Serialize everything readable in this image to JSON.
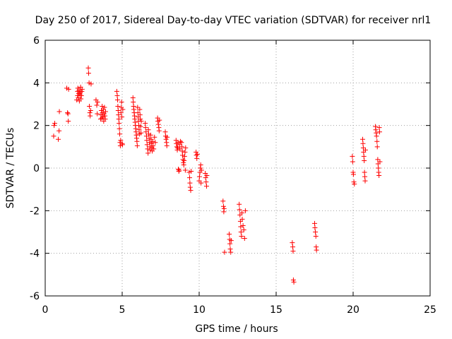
{
  "chart_data": {
    "type": "scatter",
    "title": "Day 250 of 2017, Sidereal Day-to-day VTEC variation (SDTVAR) for receiver nrl1",
    "xlabel": "GPS time / hours",
    "ylabel": "SDTVAR / TECUs",
    "xlim": [
      0,
      25
    ],
    "ylim": [
      -6,
      6
    ],
    "xticks": [
      0,
      5,
      10,
      15,
      20,
      25
    ],
    "yticks": [
      -6,
      -4,
      -2,
      0,
      2,
      4,
      6
    ],
    "xtick_labels": [
      "0",
      "5",
      "10",
      "15",
      "20",
      "25"
    ],
    "ytick_labels": [
      "-6",
      "-4",
      "-2",
      "0",
      "2",
      "4",
      "6"
    ],
    "grid": true,
    "marker": "plus",
    "marker_color": "#ff0000",
    "series": [
      {
        "name": "nrl1",
        "points": [
          [
            0.55,
            1.5
          ],
          [
            0.58,
            2.0
          ],
          [
            0.62,
            2.1
          ],
          [
            0.85,
            1.35
          ],
          [
            0.9,
            1.75
          ],
          [
            0.92,
            2.65
          ],
          [
            1.4,
            3.75
          ],
          [
            1.45,
            2.6
          ],
          [
            1.48,
            2.55
          ],
          [
            1.5,
            2.2
          ],
          [
            1.52,
            3.7
          ],
          [
            2.05,
            3.2
          ],
          [
            2.1,
            3.4
          ],
          [
            2.1,
            3.6
          ],
          [
            2.12,
            3.75
          ],
          [
            2.15,
            3.3
          ],
          [
            2.18,
            3.5
          ],
          [
            2.2,
            3.65
          ],
          [
            2.22,
            3.15
          ],
          [
            2.25,
            3.45
          ],
          [
            2.28,
            3.55
          ],
          [
            2.3,
            3.8
          ],
          [
            2.32,
            3.25
          ],
          [
            2.35,
            3.4
          ],
          [
            2.38,
            3.6
          ],
          [
            2.4,
            3.7
          ],
          [
            2.8,
            4.7
          ],
          [
            2.82,
            4.45
          ],
          [
            2.85,
            4.0
          ],
          [
            2.87,
            2.9
          ],
          [
            2.9,
            2.6
          ],
          [
            2.92,
            2.45
          ],
          [
            2.95,
            2.7
          ],
          [
            2.98,
            3.95
          ],
          [
            3.3,
            3.2
          ],
          [
            3.35,
            2.95
          ],
          [
            3.38,
            2.55
          ],
          [
            3.4,
            3.1
          ],
          [
            3.6,
            2.3
          ],
          [
            3.62,
            2.5
          ],
          [
            3.65,
            2.7
          ],
          [
            3.68,
            2.35
          ],
          [
            3.7,
            2.9
          ],
          [
            3.72,
            2.6
          ],
          [
            3.75,
            2.4
          ],
          [
            3.78,
            2.75
          ],
          [
            3.8,
            2.2
          ],
          [
            3.82,
            2.55
          ],
          [
            3.85,
            2.85
          ],
          [
            3.88,
            2.45
          ],
          [
            3.9,
            2.3
          ],
          [
            3.92,
            2.65
          ],
          [
            4.65,
            3.6
          ],
          [
            4.68,
            3.4
          ],
          [
            4.7,
            3.2
          ],
          [
            4.72,
            2.9
          ],
          [
            4.74,
            2.7
          ],
          [
            4.76,
            2.5
          ],
          [
            4.78,
            2.3
          ],
          [
            4.8,
            2.1
          ],
          [
            4.82,
            1.85
          ],
          [
            4.84,
            1.6
          ],
          [
            4.86,
            1.2
          ],
          [
            4.88,
            1.05
          ],
          [
            4.9,
            1.3
          ],
          [
            4.92,
            2.6
          ],
          [
            4.94,
            2.85
          ],
          [
            4.96,
            3.1
          ],
          [
            4.98,
            2.4
          ],
          [
            5.0,
            1.15
          ],
          [
            5.02,
            1.1
          ],
          [
            5.04,
            2.75
          ],
          [
            5.7,
            3.3
          ],
          [
            5.72,
            3.1
          ],
          [
            5.74,
            2.9
          ],
          [
            5.76,
            2.75
          ],
          [
            5.78,
            2.6
          ],
          [
            5.8,
            2.45
          ],
          [
            5.82,
            2.3
          ],
          [
            5.84,
            2.15
          ],
          [
            5.86,
            2.0
          ],
          [
            5.88,
            1.85
          ],
          [
            5.9,
            1.7
          ],
          [
            5.92,
            1.55
          ],
          [
            5.94,
            1.4
          ],
          [
            5.96,
            1.25
          ],
          [
            5.98,
            1.05
          ],
          [
            6.0,
            2.85
          ],
          [
            6.02,
            2.6
          ],
          [
            6.04,
            2.4
          ],
          [
            6.06,
            2.2
          ],
          [
            6.08,
            2.0
          ],
          [
            6.1,
            1.8
          ],
          [
            6.12,
            1.6
          ],
          [
            6.14,
            2.75
          ],
          [
            6.16,
            2.5
          ],
          [
            6.18,
            2.3
          ],
          [
            6.2,
            1.95
          ],
          [
            6.22,
            1.65
          ],
          [
            6.24,
            2.2
          ],
          [
            6.5,
            2.1
          ],
          [
            6.52,
            1.9
          ],
          [
            6.55,
            1.7
          ],
          [
            6.58,
            1.5
          ],
          [
            6.6,
            1.3
          ],
          [
            6.62,
            1.1
          ],
          [
            6.65,
            0.9
          ],
          [
            6.68,
            0.7
          ],
          [
            6.7,
            1.8
          ],
          [
            6.72,
            1.6
          ],
          [
            6.75,
            1.4
          ],
          [
            6.78,
            1.2
          ],
          [
            6.8,
            1.0
          ],
          [
            6.82,
            0.85
          ],
          [
            6.85,
            1.55
          ],
          [
            6.88,
            1.35
          ],
          [
            6.9,
            1.15
          ],
          [
            6.92,
            0.95
          ],
          [
            6.95,
            0.8
          ],
          [
            6.98,
            1.25
          ],
          [
            7.0,
            1.05
          ],
          [
            7.05,
            0.9
          ],
          [
            7.1,
            1.45
          ],
          [
            7.15,
            1.2
          ],
          [
            7.3,
            2.35
          ],
          [
            7.32,
            2.2
          ],
          [
            7.35,
            2.05
          ],
          [
            7.38,
            1.9
          ],
          [
            7.4,
            1.75
          ],
          [
            7.42,
            2.25
          ],
          [
            7.8,
            1.7
          ],
          [
            7.82,
            1.5
          ],
          [
            7.85,
            1.35
          ],
          [
            7.88,
            1.2
          ],
          [
            7.9,
            1.05
          ],
          [
            7.92,
            1.45
          ],
          [
            8.5,
            1.3
          ],
          [
            8.52,
            1.15
          ],
          [
            8.55,
            1.0
          ],
          [
            8.58,
            0.85
          ],
          [
            8.6,
            0.95
          ],
          [
            8.62,
            1.2
          ],
          [
            8.65,
            -0.05
          ],
          [
            8.68,
            -0.15
          ],
          [
            8.7,
            -0.1
          ],
          [
            8.72,
            1.1
          ],
          [
            8.75,
            0.9
          ],
          [
            8.78,
            1.25
          ],
          [
            8.85,
            1.2
          ],
          [
            8.88,
            1.0
          ],
          [
            8.9,
            0.8
          ],
          [
            8.92,
            0.6
          ],
          [
            8.95,
            0.4
          ],
          [
            8.98,
            0.25
          ],
          [
            9.0,
            0.15
          ],
          [
            9.02,
            0.35
          ],
          [
            9.05,
            0.55
          ],
          [
            9.08,
            0.75
          ],
          [
            9.1,
            -0.1
          ],
          [
            9.12,
            0.95
          ],
          [
            9.35,
            -0.2
          ],
          [
            9.38,
            -0.45
          ],
          [
            9.4,
            -0.7
          ],
          [
            9.42,
            -0.9
          ],
          [
            9.45,
            -1.05
          ],
          [
            9.48,
            -0.15
          ],
          [
            9.8,
            0.75
          ],
          [
            9.82,
            0.6
          ],
          [
            9.85,
            0.45
          ],
          [
            9.88,
            0.65
          ],
          [
            10.0,
            -0.6
          ],
          [
            10.02,
            -0.4
          ],
          [
            10.05,
            -0.2
          ],
          [
            10.08,
            0.0
          ],
          [
            10.1,
            0.15
          ],
          [
            10.12,
            -0.7
          ],
          [
            10.15,
            -0.1
          ],
          [
            10.4,
            -0.25
          ],
          [
            10.42,
            -0.45
          ],
          [
            10.45,
            -0.65
          ],
          [
            10.48,
            -0.85
          ],
          [
            10.5,
            -0.35
          ],
          [
            11.55,
            -1.55
          ],
          [
            11.58,
            -1.8
          ],
          [
            11.6,
            -2.05
          ],
          [
            11.62,
            -1.9
          ],
          [
            11.65,
            -3.95
          ],
          [
            11.95,
            -3.1
          ],
          [
            11.98,
            -3.35
          ],
          [
            12.0,
            -3.55
          ],
          [
            12.02,
            -3.8
          ],
          [
            12.05,
            -3.95
          ],
          [
            12.08,
            -3.4
          ],
          [
            12.6,
            -1.7
          ],
          [
            12.62,
            -1.95
          ],
          [
            12.65,
            -2.2
          ],
          [
            12.68,
            -2.5
          ],
          [
            12.7,
            -2.75
          ],
          [
            12.72,
            -3.0
          ],
          [
            12.75,
            -3.2
          ],
          [
            12.78,
            -2.1
          ],
          [
            12.8,
            -2.4
          ],
          [
            12.85,
            -2.7
          ],
          [
            12.9,
            -2.9
          ],
          [
            12.95,
            -3.3
          ],
          [
            13.0,
            -2.0
          ],
          [
            16.05,
            -3.5
          ],
          [
            16.08,
            -3.7
          ],
          [
            16.1,
            -3.9
          ],
          [
            16.12,
            -5.25
          ],
          [
            16.15,
            -5.35
          ],
          [
            17.5,
            -2.6
          ],
          [
            17.52,
            -2.8
          ],
          [
            17.55,
            -3.0
          ],
          [
            17.58,
            -3.2
          ],
          [
            17.6,
            -3.7
          ],
          [
            17.62,
            -3.85
          ],
          [
            19.95,
            0.55
          ],
          [
            19.97,
            0.3
          ],
          [
            20.0,
            -0.2
          ],
          [
            20.02,
            -0.3
          ],
          [
            20.05,
            -0.65
          ],
          [
            20.08,
            -0.75
          ],
          [
            20.62,
            1.35
          ],
          [
            20.64,
            1.15
          ],
          [
            20.66,
            0.95
          ],
          [
            20.68,
            0.75
          ],
          [
            20.7,
            0.55
          ],
          [
            20.72,
            0.35
          ],
          [
            20.74,
            -0.2
          ],
          [
            20.76,
            -0.4
          ],
          [
            20.78,
            -0.6
          ],
          [
            20.8,
            0.85
          ],
          [
            21.45,
            1.95
          ],
          [
            21.47,
            1.8
          ],
          [
            21.5,
            1.65
          ],
          [
            21.52,
            1.5
          ],
          [
            21.55,
            1.25
          ],
          [
            21.57,
            1.0
          ],
          [
            21.6,
            0.4
          ],
          [
            21.62,
            0.2
          ],
          [
            21.64,
            0.0
          ],
          [
            21.66,
            -0.2
          ],
          [
            21.68,
            -0.35
          ],
          [
            21.7,
            1.9
          ],
          [
            21.72,
            1.7
          ],
          [
            21.74,
            0.3
          ]
        ]
      }
    ]
  }
}
